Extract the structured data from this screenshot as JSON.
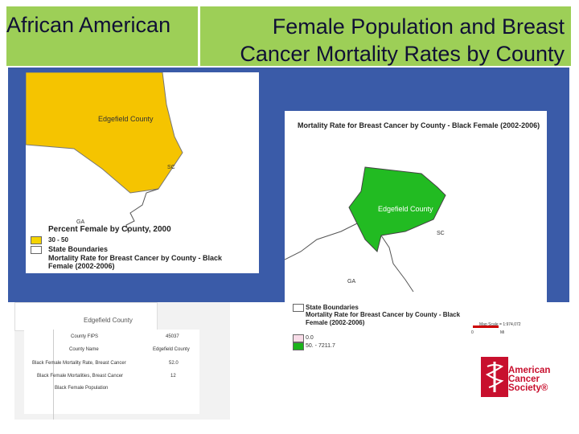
{
  "title": {
    "left": "African American",
    "right": "Female Population and Breast Cancer Mortality Rates by County"
  },
  "left_map": {
    "county_label": "Edgefield County",
    "state_label": "SC",
    "state_label_2": "GA",
    "heading": "Percent Female by County, 2000",
    "legend": [
      {
        "label": "30 - 50",
        "color": "#f5d400"
      },
      {
        "label": "State Boundaries",
        "color": "#ffffff"
      }
    ],
    "subheading": "Mortality Rate for Breast Cancer by County - Black Female (2002-2006)"
  },
  "right_map": {
    "heading": "Mortality Rate for Breast Cancer by County - Black Female (2002-2006)",
    "county_label": "Edgefield County",
    "state_label": "SC",
    "state_label_2": "GA",
    "legend_title": "State Boundaries",
    "legend_subtitle": "Mortality Rate for Breast Cancer by County - Black Female (2002-2006)",
    "legend": [
      {
        "label": "0.0",
        "color": "#f8dce8"
      },
      {
        "label": "50. - 7211.7",
        "color": "#1bb31b"
      }
    ],
    "scale_label": "Map Scale = 1:974,072",
    "scale_zero": "0",
    "scale_unit": "Mi"
  },
  "table": {
    "title": "Edgefield County",
    "rows": [
      {
        "label": "County FIPS",
        "value": "45037"
      },
      {
        "label": "County Name",
        "value": "Edgefield County"
      },
      {
        "label": "Black Female Mortality Rate, Breast Cancer",
        "value": "52.0"
      },
      {
        "label": "Black Female Mortalities, Breast Cancer",
        "value": "12"
      },
      {
        "label": "Black Female Population",
        "value": ""
      }
    ]
  },
  "logo": {
    "line1": "American",
    "line2": "Cancer",
    "line3": "Society®"
  }
}
